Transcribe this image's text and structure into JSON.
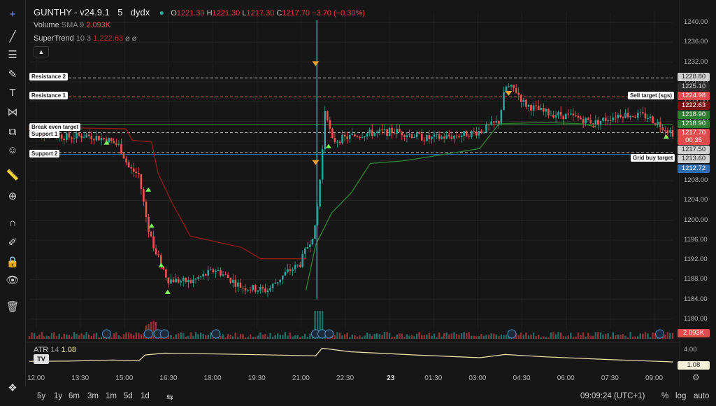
{
  "symbol": {
    "name": "GUNTHY - v24.9.1",
    "interval": "5",
    "exchange": "dydx"
  },
  "ohlc": {
    "o_label": "O",
    "o": "1221.30",
    "h_label": "H",
    "h": "1221.30",
    "l_label": "L",
    "l": "1217.30",
    "c_label": "C",
    "c": "1217.70",
    "change": "−3.70 (−0.30%)"
  },
  "indicators": {
    "volume": {
      "name": "Volume",
      "params": "SMA 9",
      "value": "2.093K"
    },
    "supertrend": {
      "name": "SuperTrend",
      "params": "10 3",
      "value": "1,222.63",
      "icons": "⌀ ⌀"
    },
    "atr": {
      "name": "ATR",
      "params": "14",
      "value": "1.08"
    }
  },
  "levels": {
    "resistance2": "Resistance 2",
    "resistance1": "Resistance 1",
    "break_even": "Break even target",
    "support1": "Support 1",
    "support2": "Support 2",
    "sell_target": "Sell target (sgs)",
    "grid_buy": "Grid buy target"
  },
  "price_labels": {
    "r2": "1228.80",
    "p1225": "1225.10",
    "r1": "1224.98",
    "st": "1222.63",
    "g1": "1218.90",
    "g2": "1218.90",
    "last": "1217.70",
    "countdown": "00:35",
    "p1217": "1217.50",
    "p1213": "1213.60",
    "blue": "1212.72",
    "vol": "2.093K",
    "atr_top": "4.00",
    "atr_val": "1.08"
  },
  "colors": {
    "up": "#26a69a",
    "down": "#ef5350",
    "green_st": "#2e7d32",
    "red_st": "#8b1a1a",
    "bg": "#161616"
  },
  "time_axis": [
    "12:00",
    "13:30",
    "15:00",
    "16:30",
    "18:00",
    "19:30",
    "21:00",
    "22:30",
    "23",
    "01:30",
    "03:00",
    "04:30",
    "06:00",
    "07:30",
    "09:00"
  ],
  "bottom": {
    "ranges": [
      "5y",
      "1y",
      "6m",
      "3m",
      "1m",
      "5d",
      "1d"
    ],
    "clock": "09:09:24 (UTC+1)",
    "pct": "%",
    "log": "log",
    "auto": "auto"
  },
  "chart_data": {
    "type": "candlestick",
    "title": "GUNTHY - v24.9.1 · 5 · dydx",
    "ylim": [
      1178,
      1242
    ],
    "y_ticks": [
      1240,
      1236,
      1232,
      1228,
      1224,
      1220,
      1216,
      1212,
      1208,
      1204,
      1200,
      1196,
      1192,
      1188,
      1184,
      1180
    ],
    "x_ticks": [
      "12:00",
      "13:30",
      "15:00",
      "16:30",
      "18:00",
      "19:30",
      "21:00",
      "22:30",
      "23",
      "01:30",
      "03:00",
      "04:30",
      "06:00",
      "07:30",
      "09:00"
    ],
    "price_path": [
      [
        0,
        1218.5
      ],
      [
        0.03,
        1217.6
      ],
      [
        0.06,
        1216.8
      ],
      [
        0.09,
        1217.2
      ],
      [
        0.12,
        1216.4
      ],
      [
        0.14,
        1215.0
      ],
      [
        0.155,
        1210.5
      ],
      [
        0.17,
        1209.2
      ],
      [
        0.185,
        1198.0
      ],
      [
        0.2,
        1192.5
      ],
      [
        0.215,
        1188.0
      ],
      [
        0.25,
        1187.5
      ],
      [
        0.29,
        1190.0
      ],
      [
        0.33,
        1186.5
      ],
      [
        0.37,
        1185.8
      ],
      [
        0.4,
        1189.5
      ],
      [
        0.42,
        1191.0
      ],
      [
        0.445,
        1198.5
      ],
      [
        0.455,
        1213.0
      ],
      [
        0.46,
        1223.5
      ],
      [
        0.47,
        1216.0
      ],
      [
        0.52,
        1217.5
      ],
      [
        0.57,
        1218.0
      ],
      [
        0.62,
        1216.5
      ],
      [
        0.67,
        1217.2
      ],
      [
        0.7,
        1218.0
      ],
      [
        0.73,
        1220.0
      ],
      [
        0.74,
        1227.0
      ],
      [
        0.755,
        1226.5
      ],
      [
        0.77,
        1223.5
      ],
      [
        0.8,
        1221.8
      ],
      [
        0.84,
        1221.0
      ],
      [
        0.88,
        1219.8
      ],
      [
        0.92,
        1221.5
      ],
      [
        0.96,
        1221.0
      ],
      [
        1.0,
        1217.7
      ]
    ],
    "supertrend_red": [
      [
        0,
        1218.8
      ],
      [
        0.1,
        1218.6
      ],
      [
        0.15,
        1218.5
      ],
      [
        0.16,
        1216.2
      ],
      [
        0.19,
        1215.8
      ],
      [
        0.2,
        1209.5
      ],
      [
        0.22,
        1204.0
      ],
      [
        0.25,
        1196.8
      ],
      [
        0.33,
        1194.5
      ],
      [
        0.36,
        1192.2
      ],
      [
        0.43,
        1192.2
      ]
    ],
    "supertrend_green": [
      [
        0.43,
        1185.8
      ],
      [
        0.445,
        1195.0
      ],
      [
        0.47,
        1201.5
      ],
      [
        0.5,
        1205.5
      ],
      [
        0.53,
        1211.5
      ],
      [
        0.58,
        1212.0
      ],
      [
        0.63,
        1213.0
      ],
      [
        0.7,
        1214.5
      ],
      [
        0.73,
        1219.5
      ],
      [
        0.8,
        1219.8
      ],
      [
        0.86,
        1219.5
      ],
      [
        0.88,
        1218.9
      ]
    ],
    "levels": [
      {
        "name": "Resistance 2",
        "price": 1228.8
      },
      {
        "name": "Resistance 1",
        "price": 1224.98
      },
      {
        "name": "Break even target",
        "price": 1219.4
      },
      {
        "name": "Support 1",
        "price": 1217.7
      },
      {
        "name": "Support 2",
        "price": 1213.7
      },
      {
        "name": "Sell target (sgs)",
        "price": 1224.98
      },
      {
        "name": "Grid buy target",
        "price": 1213.6
      }
    ],
    "atr": {
      "value": 1.08,
      "ymax": 4.0
    }
  }
}
